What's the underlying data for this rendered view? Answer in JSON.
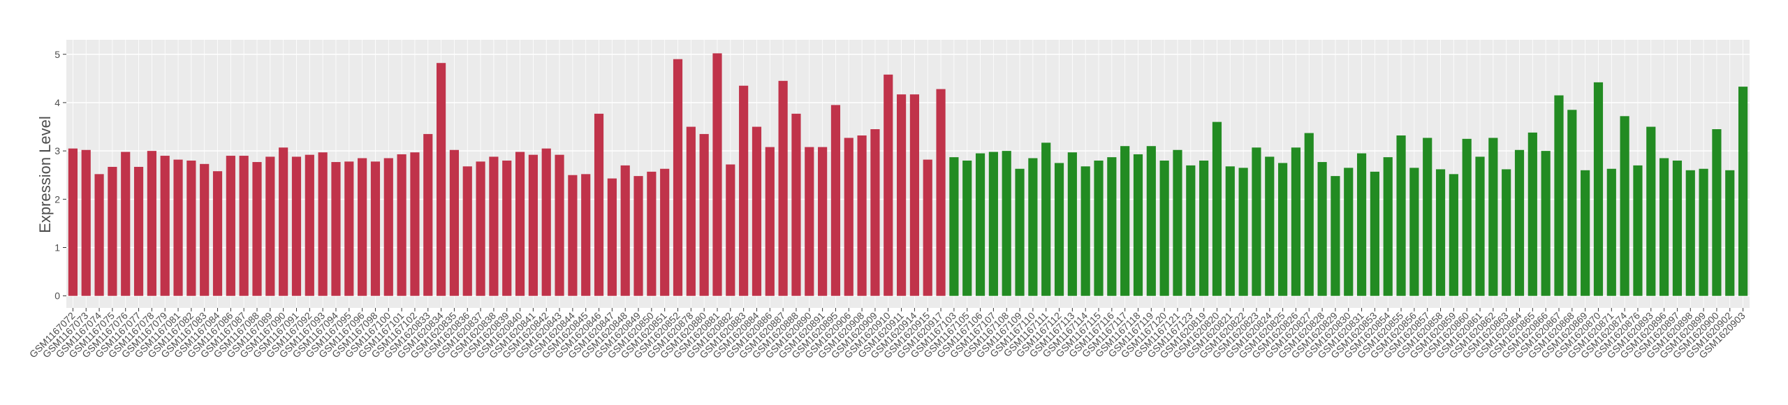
{
  "chart_data": {
    "type": "bar",
    "y_label": "Expression Level",
    "ylim": [
      -0.25,
      5.3
    ],
    "yticks": [
      0,
      1,
      2,
      3,
      4,
      5
    ],
    "grid": true,
    "background": "#ebebeb",
    "series": [
      {
        "color": "#c0334a",
        "categories": [
          "GSM1167072",
          "GSM1167073",
          "GSM1167074",
          "GSM1167075",
          "GSM1167076",
          "GSM1167077",
          "GSM1167078",
          "GSM1167079",
          "GSM1167081",
          "GSM1167082",
          "GSM1167083",
          "GSM1167084",
          "GSM1167086",
          "GSM1167087",
          "GSM1167088",
          "GSM1167089",
          "GSM1167090",
          "GSM1167091",
          "GSM1167092",
          "GSM1167093",
          "GSM1167094",
          "GSM1167095",
          "GSM1167096",
          "GSM1167098",
          "GSM1167100",
          "GSM1167101",
          "GSM1167102",
          "GSM1620833",
          "GSM1620834",
          "GSM1620835",
          "GSM1620836",
          "GSM1620837",
          "GSM1620838",
          "GSM1620839",
          "GSM1620840",
          "GSM1620841",
          "GSM1620842",
          "GSM1620843",
          "GSM1620844",
          "GSM1620845",
          "GSM1620846",
          "GSM1620847",
          "GSM1620848",
          "GSM1620849",
          "GSM1620850",
          "GSM1620851",
          "GSM1620852",
          "GSM1620878",
          "GSM1620880",
          "GSM1620881",
          "GSM1620882",
          "GSM1620883",
          "GSM1620884",
          "GSM1620886",
          "GSM1620887",
          "GSM1620888",
          "GSM1620890",
          "GSM1620891",
          "GSM1620895",
          "GSM1620906",
          "GSM1620908",
          "GSM1620909",
          "GSM1620910",
          "GSM1620911",
          "GSM1620914",
          "GSM1620915",
          "GSM1620917"
        ],
        "values": [
          3.05,
          3.02,
          2.52,
          2.67,
          2.98,
          2.67,
          3.0,
          2.9,
          2.82,
          2.8,
          2.73,
          2.58,
          2.9,
          2.9,
          2.77,
          2.88,
          3.07,
          2.88,
          2.92,
          2.97,
          2.77,
          2.78,
          2.85,
          2.78,
          2.85,
          2.93,
          2.97,
          3.35,
          4.82,
          3.02,
          2.68,
          2.78,
          2.88,
          2.8,
          2.98,
          2.92,
          3.05,
          2.92,
          2.5,
          2.52,
          3.77,
          2.43,
          2.7,
          2.48,
          2.57,
          2.63,
          4.9,
          3.5,
          3.35,
          5.02,
          2.72,
          4.35,
          3.5,
          3.08,
          4.45,
          3.77,
          3.08,
          3.08,
          3.95,
          3.27,
          3.32,
          3.45,
          4.58,
          4.17,
          4.17,
          2.82,
          4.28
        ]
      },
      {
        "color": "#228b22",
        "categories": [
          "GSM1167103",
          "GSM1167105",
          "GSM1167106",
          "GSM1167107",
          "GSM1167108",
          "GSM1167109",
          "GSM1167110",
          "GSM1167111",
          "GSM1167112",
          "GSM1167113",
          "GSM1167114",
          "GSM1167115",
          "GSM1167116",
          "GSM1167117",
          "GSM1167118",
          "GSM1167119",
          "GSM1167120",
          "GSM1167121",
          "GSM1167123",
          "GSM1620819",
          "GSM1620820",
          "GSM1620821",
          "GSM1620822",
          "GSM1620823",
          "GSM1620824",
          "GSM1620825",
          "GSM1620826",
          "GSM1620827",
          "GSM1620828",
          "GSM1620829",
          "GSM1620830",
          "GSM1620831",
          "GSM1620853",
          "GSM1620854",
          "GSM1620855",
          "GSM1620856",
          "GSM1620857",
          "GSM1620858",
          "GSM1620859",
          "GSM1620860",
          "GSM1620861",
          "GSM1620862",
          "GSM1620863",
          "GSM1620864",
          "GSM1620865",
          "GSM1620866",
          "GSM1620867",
          "GSM1620868",
          "GSM1620869",
          "GSM1620870",
          "GSM1620871",
          "GSM1620874",
          "GSM1620876",
          "GSM1620893",
          "GSM1620896",
          "GSM1620897",
          "GSM1620898",
          "GSM1620899",
          "GSM1620900",
          "GSM1620902",
          "GSM1620903"
        ],
        "values": [
          2.87,
          2.8,
          2.95,
          2.98,
          3.0,
          2.63,
          2.85,
          3.17,
          2.75,
          2.97,
          2.68,
          2.8,
          2.87,
          3.1,
          2.93,
          3.1,
          2.8,
          3.02,
          2.7,
          2.8,
          3.6,
          2.68,
          2.65,
          3.07,
          2.88,
          2.75,
          3.07,
          3.37,
          2.77,
          2.48,
          2.65,
          2.95,
          2.57,
          2.87,
          3.32,
          2.65,
          3.27,
          2.62,
          2.52,
          3.25,
          2.88,
          3.27,
          2.62,
          3.02,
          3.38,
          3.0,
          4.15,
          3.85,
          2.6,
          4.42,
          2.63,
          3.72,
          2.7,
          3.5,
          2.85,
          2.8,
          2.6,
          2.63,
          3.45,
          2.6,
          4.33
        ]
      }
    ]
  }
}
